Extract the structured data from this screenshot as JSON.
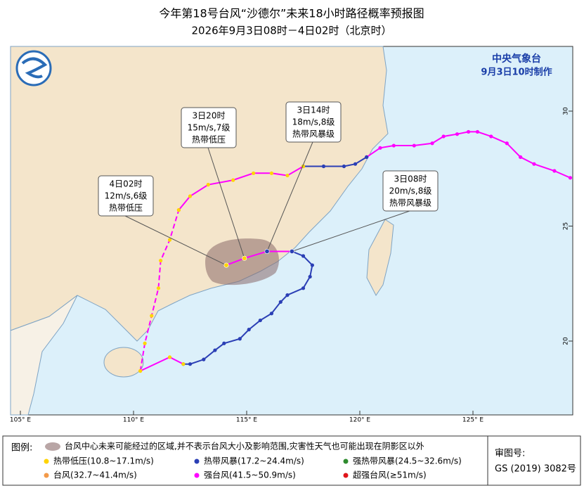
{
  "header": {
    "title": "今年第18号台风“沙德尔”未来18小时路径概率预报图",
    "subtitle": "2026年9月3日08时－4日02时（北京时）"
  },
  "map": {
    "agency": "中央气象台",
    "issued": "9月3日10时制作",
    "lon_ticks": [
      {
        "value": 105,
        "label": "105° E"
      },
      {
        "value": 110,
        "label": "110° E"
      },
      {
        "value": 115,
        "label": "115° E"
      },
      {
        "value": 120,
        "label": "120° E"
      },
      {
        "value": 125,
        "label": "125° E"
      }
    ],
    "lat_ticks": [
      20,
      25,
      30
    ],
    "tracks": [
      {
        "color": "#ff00ff",
        "dot_color": "#ff00ff",
        "dashed": false,
        "points": [
          [
            129.3,
            27.1
          ],
          [
            128.6,
            27.4
          ],
          [
            127.7,
            27.7
          ],
          [
            127.1,
            28.0
          ],
          [
            126.5,
            28.6
          ],
          [
            125.8,
            28.9
          ],
          [
            125.2,
            29.1
          ],
          [
            124.8,
            29.1
          ],
          [
            124.3,
            29.0
          ],
          [
            123.7,
            28.9
          ],
          [
            123.2,
            28.6
          ],
          [
            122.4,
            28.5
          ],
          [
            121.5,
            28.5
          ],
          [
            120.9,
            28.4
          ],
          [
            120.3,
            28.0
          ]
        ]
      },
      {
        "color": "#2b3fb5",
        "dot_color": "#2b3fb5",
        "dashed": false,
        "points": [
          [
            120.3,
            28.0
          ],
          [
            119.8,
            27.7
          ],
          [
            119.3,
            27.6
          ],
          [
            118.4,
            27.6
          ],
          [
            117.5,
            27.6
          ]
        ]
      },
      {
        "color": "#2b3fb5",
        "dot_color": "#2b3fb5",
        "dashed": false,
        "points": [
          [
            117.0,
            23.9
          ],
          [
            117.5,
            23.7
          ],
          [
            117.9,
            23.3
          ],
          [
            117.8,
            22.8
          ],
          [
            117.5,
            22.3
          ],
          [
            116.8,
            22.0
          ],
          [
            116.5,
            21.7
          ],
          [
            116.1,
            21.2
          ],
          [
            115.6,
            20.9
          ],
          [
            115.1,
            20.5
          ],
          [
            114.7,
            20.1
          ],
          [
            114.0,
            19.9
          ],
          [
            113.6,
            19.6
          ],
          [
            113.1,
            19.2
          ],
          [
            112.5,
            19.0
          ],
          [
            112.2,
            19.0
          ]
        ]
      },
      {
        "color": "#ff00ff",
        "dot_color": "#ffd400",
        "dashed": false,
        "points": [
          [
            112.2,
            19.0
          ],
          [
            111.6,
            19.3
          ],
          [
            110.3,
            18.7
          ]
        ]
      },
      {
        "color": "#ff00ff",
        "dot_color": "#ffd400",
        "dashed": true,
        "points": [
          [
            110.3,
            18.7
          ],
          [
            110.5,
            19.9
          ],
          [
            110.8,
            21.1
          ],
          [
            111.1,
            22.3
          ],
          [
            111.2,
            23.5
          ],
          [
            111.6,
            24.4
          ],
          [
            112.0,
            25.7
          ]
        ]
      },
      {
        "color": "#ff00ff",
        "dot_color": "#ffd400",
        "dashed": false,
        "points": [
          [
            112.0,
            25.7
          ],
          [
            112.5,
            26.3
          ],
          [
            113.3,
            26.8
          ],
          [
            114.4,
            27.0
          ],
          [
            115.3,
            27.3
          ],
          [
            116.1,
            27.3
          ],
          [
            116.8,
            27.2
          ],
          [
            117.5,
            27.6
          ]
        ]
      }
    ],
    "forecast": {
      "color": "#ff00ff",
      "points": [
        [
          117.0,
          23.9
        ],
        [
          115.9,
          23.9
        ],
        [
          114.9,
          23.6
        ],
        [
          114.1,
          23.3
        ]
      ]
    },
    "callouts": [
      {
        "time": "3日08时",
        "wind": "20m/s,8级",
        "level": "热带风暴级"
      },
      {
        "time": "3日14时",
        "wind": "18m/s,8级",
        "level": "热带风暴级"
      },
      {
        "time": "3日20时",
        "wind": "15m/s,7级",
        "level": "热带低压"
      },
      {
        "time": "4日02时",
        "wind": "12m/s,6级",
        "level": "热带低压"
      }
    ]
  },
  "legend": {
    "title": "图例:",
    "area": "台风中心未来可能经过的区域,并不表示台风大小及影响范围,灾害性天气也可能出现在阴影区以外",
    "items": [
      {
        "label": "热带低压(10.8~17.1m/s)",
        "color": "#ffd400"
      },
      {
        "label": "热带风暴(17.2~24.4m/s)",
        "color": "#2b3fb5"
      },
      {
        "label": "强热带风暴(24.5~32.6m/s)",
        "color": "#2e8b2e"
      },
      {
        "label": "台风(32.7~41.4m/s)",
        "color": "#f39a4a"
      },
      {
        "label": "强台风(41.5~50.9m/s)",
        "color": "#ff00ff"
      },
      {
        "label": "超强台风(≥51m/s)",
        "color": "#e0161b"
      }
    ],
    "review_label": "审图号:",
    "review_no": "GS (2019) 3082号"
  }
}
